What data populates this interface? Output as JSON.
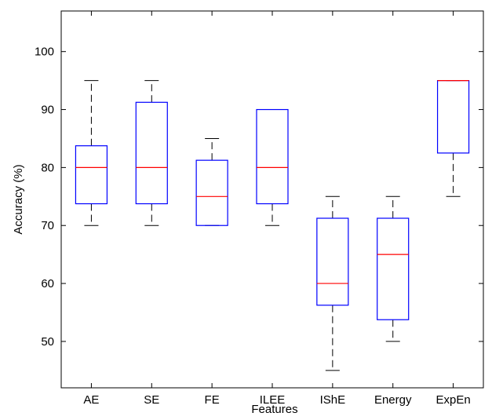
{
  "chart_data": {
    "type": "boxplot",
    "title": "",
    "xlabel": "Features",
    "ylabel": "Accuracy (%)",
    "ylim": [
      42,
      107
    ],
    "yticks": [
      50,
      60,
      70,
      80,
      90,
      100
    ],
    "grid": false,
    "categories": [
      "AE",
      "SE",
      "FE",
      "ILEE",
      "IShE",
      "Energy",
      "ExpEn"
    ],
    "boxes": [
      {
        "category": "AE",
        "whisker_low": 70,
        "q1": 73.75,
        "median": 80,
        "q3": 83.75,
        "whisker_high": 95
      },
      {
        "category": "SE",
        "whisker_low": 70,
        "q1": 73.75,
        "median": 80,
        "q3": 91.25,
        "whisker_high": 95
      },
      {
        "category": "FE",
        "whisker_low": 70,
        "q1": 70,
        "median": 75,
        "q3": 81.25,
        "whisker_high": 85
      },
      {
        "category": "ILEE",
        "whisker_low": 70,
        "q1": 73.75,
        "median": 80,
        "q3": 90,
        "whisker_high": 90
      },
      {
        "category": "IShE",
        "whisker_low": 45,
        "q1": 56.25,
        "median": 60,
        "q3": 71.25,
        "whisker_high": 75
      },
      {
        "category": "Energy",
        "whisker_low": 50,
        "q1": 53.75,
        "median": 65,
        "q3": 71.25,
        "whisker_high": 75
      },
      {
        "category": "ExpEn",
        "whisker_low": 75,
        "q1": 82.5,
        "median": 95,
        "q3": 95,
        "whisker_high": 95
      }
    ],
    "colors": {
      "box": "#0000ff",
      "median": "#ff0000",
      "whisker": "#000000",
      "axis": "#000000"
    }
  }
}
